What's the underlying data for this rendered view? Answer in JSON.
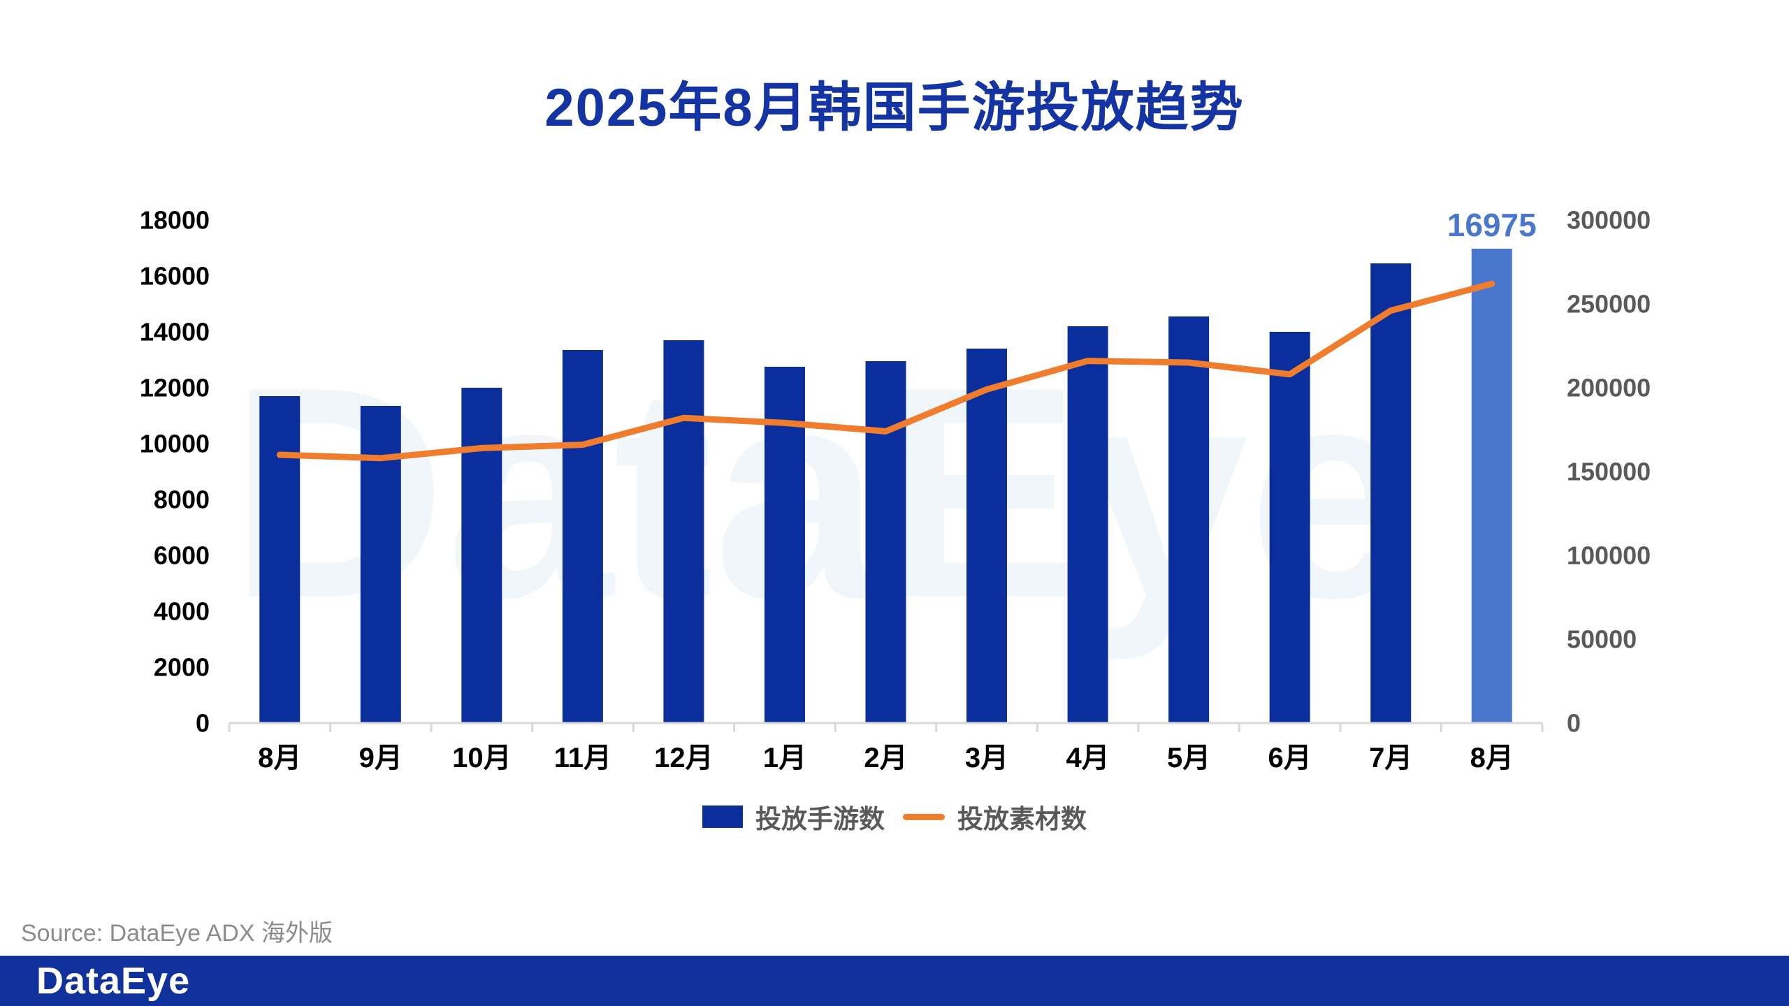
{
  "title": "2025年8月韩国手游投放趋势",
  "title_color": "#1434A4",
  "watermark": "DataEye",
  "watermark_color": "#F1F6FB",
  "source_note": "Source: DataEye ADX 海外版",
  "footer": {
    "logo_text": "DataEye",
    "bar_color": "#10309B"
  },
  "chart_data": {
    "type": "bar",
    "subtype": "bar+line combo, dual axis",
    "categories": [
      "8月",
      "9月",
      "10月",
      "11月",
      "12月",
      "1月",
      "2月",
      "3月",
      "4月",
      "5月",
      "6月",
      "7月",
      "8月"
    ],
    "series": [
      {
        "name": "投放手游数",
        "type": "bar",
        "axis": "left",
        "color": "#0A2F9D",
        "highlight_color": "#4A77CE",
        "values": [
          11700,
          11350,
          12000,
          13350,
          13700,
          12750,
          12950,
          13400,
          14200,
          14550,
          14000,
          16450,
          16975
        ]
      },
      {
        "name": "投放素材数",
        "type": "line",
        "axis": "right",
        "color": "#EF7D2D",
        "values": [
          160000,
          158000,
          164000,
          166000,
          182000,
          179000,
          174000,
          199000,
          216000,
          215000,
          208000,
          246000,
          262000
        ]
      }
    ],
    "highlight_index": 12,
    "annotation": {
      "text": "16975",
      "index": 12,
      "color": "#4A77CE"
    },
    "left_axis": {
      "min": 0,
      "max": 18000,
      "step": 2000,
      "tick_labels": [
        "0",
        "2000",
        "4000",
        "6000",
        "8000",
        "10000",
        "12000",
        "14000",
        "16000",
        "18000"
      ],
      "label_color": "#000000"
    },
    "right_axis": {
      "min": 0,
      "max": 300000,
      "step": 50000,
      "tick_labels": [
        "0",
        "50000",
        "100000",
        "150000",
        "200000",
        "250000",
        "300000"
      ],
      "label_color": "#595959"
    },
    "axis_line_color": "#D9D9D9",
    "x_label_color": "#000000",
    "grid": false,
    "legend_position": "bottom"
  }
}
